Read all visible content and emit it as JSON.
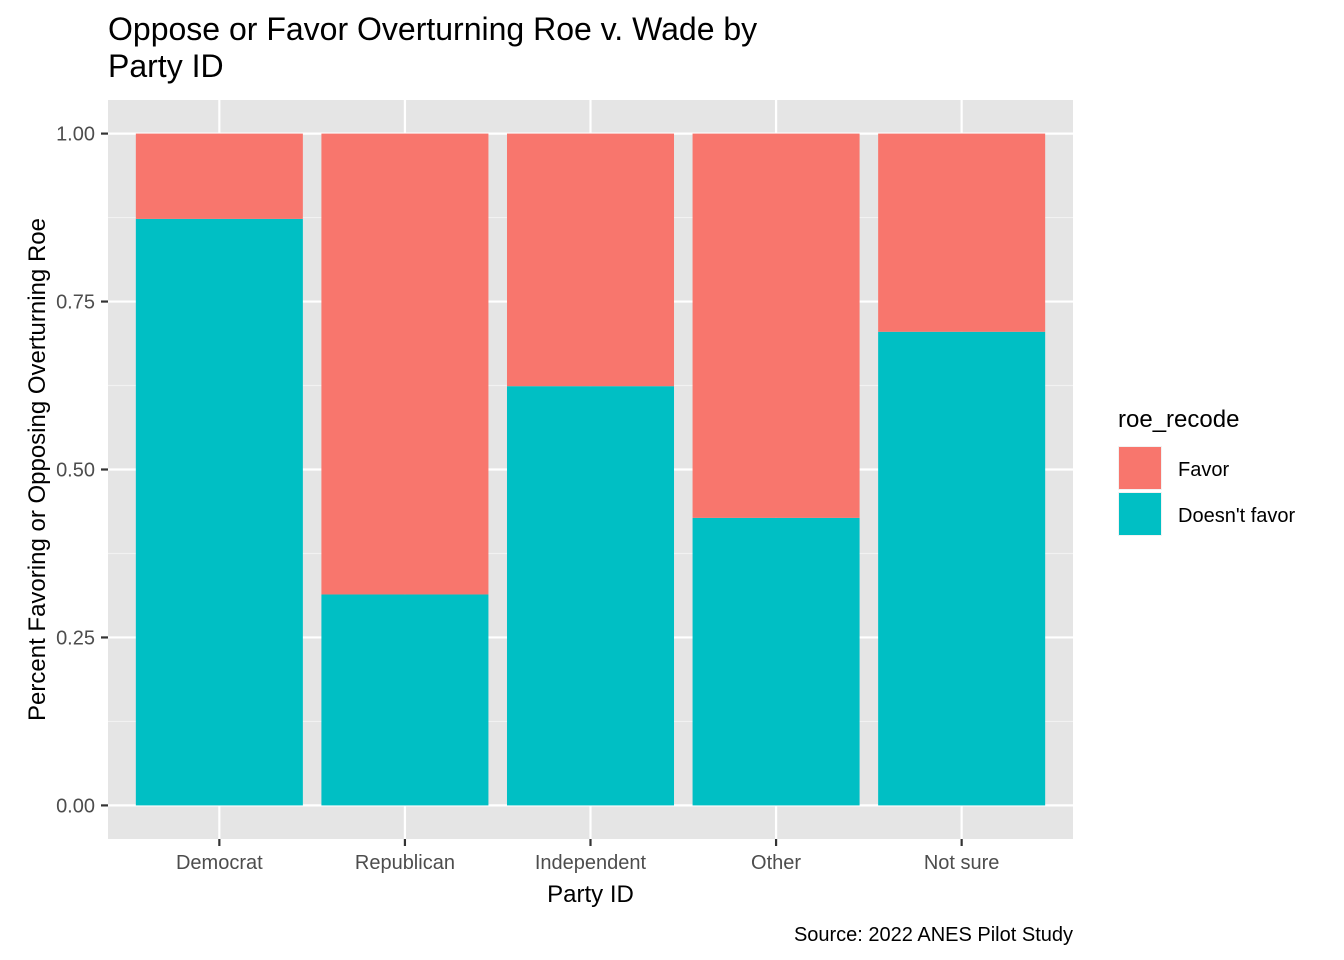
{
  "chart_data": {
    "type": "bar",
    "stacked": true,
    "title": "Oppose or Favor Overturning Roe v. Wade by\nParty ID",
    "xlabel": "Party ID",
    "ylabel": "Percent Favoring or Opposing Overturning Roe",
    "caption": "Source: 2022 ANES Pilot Study",
    "categories": [
      "Democrat",
      "Republican",
      "Independent",
      "Other",
      "Not sure"
    ],
    "series": [
      {
        "name": "Favor",
        "color": "#F8766D",
        "values": [
          0.127,
          0.686,
          0.376,
          0.572,
          0.295
        ]
      },
      {
        "name": "Doesn't favor",
        "color": "#00BFC4",
        "values": [
          0.873,
          0.314,
          0.624,
          0.428,
          0.705
        ]
      }
    ],
    "ylim": [
      -0.05,
      1.05
    ],
    "y_ticks": [
      0,
      0.25,
      0.5,
      0.75,
      1
    ],
    "y_tick_labels": [
      "0.00",
      "0.25",
      "0.50",
      "0.75",
      "1.00"
    ],
    "legend": {
      "title": "roe_recode",
      "position": "right"
    },
    "grid": true,
    "panel_background": "#E5E5E5"
  }
}
